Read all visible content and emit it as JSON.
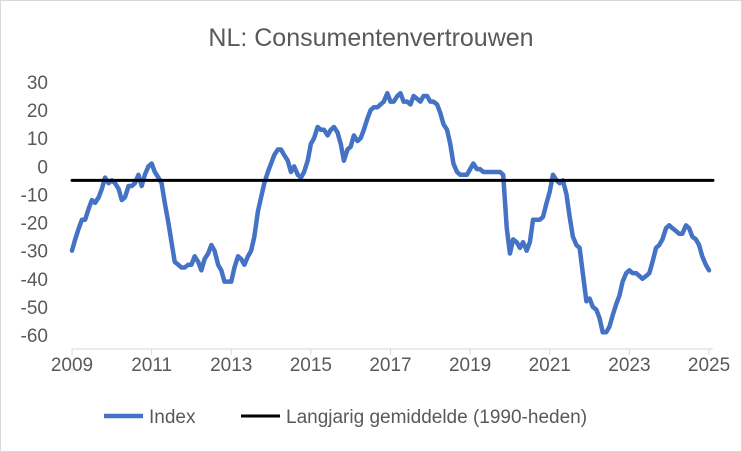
{
  "chart_data": {
    "type": "line",
    "title": "NL: Consumentenvertrouwen",
    "xlabel": "",
    "ylabel": "",
    "xlim": [
      2009,
      2025.1
    ],
    "ylim": [
      -60,
      30
    ],
    "x_ticks": [
      2009,
      2011,
      2013,
      2015,
      2017,
      2019,
      2021,
      2023,
      2025
    ],
    "x_tick_labels": [
      "2009",
      "2011",
      "2013",
      "2015",
      "2017",
      "2019",
      "2021",
      "2023",
      "2025"
    ],
    "y_ticks": [
      30,
      20,
      10,
      0,
      -10,
      -20,
      -30,
      -40,
      -50,
      -60
    ],
    "y_tick_labels": [
      "30",
      "20",
      "10",
      "0",
      "-10",
      "-20",
      "-30",
      "-40",
      "-50",
      "-60"
    ],
    "grid": false,
    "legend_position": "bottom",
    "series": [
      {
        "name": "Index",
        "color": "#4472C4",
        "points": [
          [
            2009.0,
            -30
          ],
          [
            2009.08,
            -26
          ],
          [
            2009.17,
            -22
          ],
          [
            2009.25,
            -19
          ],
          [
            2009.33,
            -19
          ],
          [
            2009.42,
            -15
          ],
          [
            2009.5,
            -12
          ],
          [
            2009.58,
            -13
          ],
          [
            2009.67,
            -11
          ],
          [
            2009.75,
            -8
          ],
          [
            2009.83,
            -4
          ],
          [
            2009.92,
            -6
          ],
          [
            2010.0,
            -5
          ],
          [
            2010.08,
            -6
          ],
          [
            2010.17,
            -8
          ],
          [
            2010.25,
            -12
          ],
          [
            2010.33,
            -11
          ],
          [
            2010.42,
            -7
          ],
          [
            2010.5,
            -7
          ],
          [
            2010.58,
            -6
          ],
          [
            2010.67,
            -3
          ],
          [
            2010.75,
            -7
          ],
          [
            2010.83,
            -3
          ],
          [
            2010.92,
            0
          ],
          [
            2011.0,
            1
          ],
          [
            2011.08,
            -2
          ],
          [
            2011.17,
            -4
          ],
          [
            2011.25,
            -6
          ],
          [
            2011.33,
            -13
          ],
          [
            2011.42,
            -20
          ],
          [
            2011.5,
            -27
          ],
          [
            2011.58,
            -34
          ],
          [
            2011.67,
            -35
          ],
          [
            2011.75,
            -36
          ],
          [
            2011.83,
            -36
          ],
          [
            2011.92,
            -35
          ],
          [
            2012.0,
            -35
          ],
          [
            2012.08,
            -32
          ],
          [
            2012.17,
            -34
          ],
          [
            2012.25,
            -37
          ],
          [
            2012.33,
            -33
          ],
          [
            2012.42,
            -31
          ],
          [
            2012.5,
            -28
          ],
          [
            2012.58,
            -30
          ],
          [
            2012.67,
            -35
          ],
          [
            2012.75,
            -37
          ],
          [
            2012.83,
            -41
          ],
          [
            2012.92,
            -41
          ],
          [
            2013.0,
            -41
          ],
          [
            2013.08,
            -36
          ],
          [
            2013.17,
            -32
          ],
          [
            2013.25,
            -33
          ],
          [
            2013.33,
            -35
          ],
          [
            2013.42,
            -32
          ],
          [
            2013.5,
            -30
          ],
          [
            2013.58,
            -25
          ],
          [
            2013.67,
            -16
          ],
          [
            2013.75,
            -11
          ],
          [
            2013.83,
            -6
          ],
          [
            2013.92,
            -2
          ],
          [
            2014.0,
            1
          ],
          [
            2014.08,
            4
          ],
          [
            2014.17,
            6
          ],
          [
            2014.25,
            6
          ],
          [
            2014.33,
            4
          ],
          [
            2014.42,
            2
          ],
          [
            2014.5,
            -2
          ],
          [
            2014.58,
            0
          ],
          [
            2014.67,
            -3
          ],
          [
            2014.75,
            -4
          ],
          [
            2014.83,
            -2
          ],
          [
            2014.92,
            2
          ],
          [
            2015.0,
            8
          ],
          [
            2015.08,
            10
          ],
          [
            2015.17,
            14
          ],
          [
            2015.25,
            13
          ],
          [
            2015.33,
            13
          ],
          [
            2015.42,
            11
          ],
          [
            2015.5,
            13
          ],
          [
            2015.58,
            14
          ],
          [
            2015.67,
            12
          ],
          [
            2015.75,
            8
          ],
          [
            2015.83,
            2
          ],
          [
            2015.92,
            6
          ],
          [
            2016.0,
            7
          ],
          [
            2016.08,
            11
          ],
          [
            2016.17,
            9
          ],
          [
            2016.25,
            10
          ],
          [
            2016.33,
            13
          ],
          [
            2016.42,
            17
          ],
          [
            2016.5,
            20
          ],
          [
            2016.58,
            21
          ],
          [
            2016.67,
            21
          ],
          [
            2016.75,
            22
          ],
          [
            2016.83,
            23
          ],
          [
            2016.92,
            26
          ],
          [
            2017.0,
            23
          ],
          [
            2017.08,
            23
          ],
          [
            2017.17,
            25
          ],
          [
            2017.25,
            26
          ],
          [
            2017.33,
            23
          ],
          [
            2017.42,
            23
          ],
          [
            2017.5,
            22
          ],
          [
            2017.58,
            25
          ],
          [
            2017.67,
            24
          ],
          [
            2017.75,
            23
          ],
          [
            2017.83,
            25
          ],
          [
            2017.92,
            25
          ],
          [
            2018.0,
            23
          ],
          [
            2018.08,
            23
          ],
          [
            2018.17,
            22
          ],
          [
            2018.25,
            19
          ],
          [
            2018.33,
            15
          ],
          [
            2018.42,
            13
          ],
          [
            2018.5,
            8
          ],
          [
            2018.58,
            1
          ],
          [
            2018.67,
            -2
          ],
          [
            2018.75,
            -3
          ],
          [
            2018.83,
            -3
          ],
          [
            2018.92,
            -3
          ],
          [
            2019.0,
            -1
          ],
          [
            2019.08,
            1
          ],
          [
            2019.17,
            -1
          ],
          [
            2019.25,
            -1
          ],
          [
            2019.33,
            -2
          ],
          [
            2019.42,
            -2
          ],
          [
            2019.5,
            -2
          ],
          [
            2019.58,
            -2
          ],
          [
            2019.67,
            -2
          ],
          [
            2019.75,
            -2
          ],
          [
            2019.83,
            -3
          ],
          [
            2019.92,
            -22
          ],
          [
            2020.0,
            -31
          ],
          [
            2020.08,
            -26
          ],
          [
            2020.17,
            -27
          ],
          [
            2020.25,
            -29
          ],
          [
            2020.33,
            -27
          ],
          [
            2020.42,
            -30
          ],
          [
            2020.5,
            -27
          ],
          [
            2020.58,
            -19
          ],
          [
            2020.67,
            -19
          ],
          [
            2020.75,
            -19
          ],
          [
            2020.83,
            -18
          ],
          [
            2020.92,
            -13
          ],
          [
            2021.0,
            -9
          ],
          [
            2021.08,
            -3
          ],
          [
            2021.17,
            -5
          ],
          [
            2021.25,
            -6
          ],
          [
            2021.33,
            -5
          ],
          [
            2021.42,
            -10
          ],
          [
            2021.5,
            -18
          ],
          [
            2021.58,
            -25
          ],
          [
            2021.67,
            -28
          ],
          [
            2021.75,
            -29
          ],
          [
            2021.83,
            -38
          ],
          [
            2021.92,
            -48
          ],
          [
            2022.0,
            -47
          ],
          [
            2022.08,
            -50
          ],
          [
            2022.17,
            -51
          ],
          [
            2022.25,
            -54
          ],
          [
            2022.33,
            -59
          ],
          [
            2022.42,
            -59
          ],
          [
            2022.5,
            -57
          ],
          [
            2022.58,
            -53
          ],
          [
            2022.67,
            -49
          ],
          [
            2022.75,
            -46
          ],
          [
            2022.83,
            -41
          ],
          [
            2022.92,
            -38
          ],
          [
            2023.0,
            -37
          ],
          [
            2023.08,
            -38
          ],
          [
            2023.17,
            -38
          ],
          [
            2023.25,
            -39
          ],
          [
            2023.33,
            -40
          ],
          [
            2023.42,
            -39
          ],
          [
            2023.5,
            -38
          ],
          [
            2023.58,
            -34
          ],
          [
            2023.67,
            -29
          ],
          [
            2023.75,
            -28
          ],
          [
            2023.83,
            -26
          ],
          [
            2023.92,
            -22
          ],
          [
            2024.0,
            -21
          ],
          [
            2024.08,
            -22
          ],
          [
            2024.17,
            -23
          ],
          [
            2024.25,
            -24
          ],
          [
            2024.33,
            -24
          ],
          [
            2024.42,
            -21
          ],
          [
            2024.5,
            -22
          ],
          [
            2024.58,
            -25
          ],
          [
            2024.67,
            -26
          ],
          [
            2024.75,
            -28
          ],
          [
            2024.83,
            -32
          ],
          [
            2024.92,
            -35
          ],
          [
            2025.0,
            -37
          ]
        ]
      },
      {
        "name": "Langjarig gemiddelde (1990-heden)",
        "color": "#000000",
        "points": [
          [
            2009.0,
            -5
          ],
          [
            2025.1,
            -5
          ]
        ]
      }
    ]
  }
}
